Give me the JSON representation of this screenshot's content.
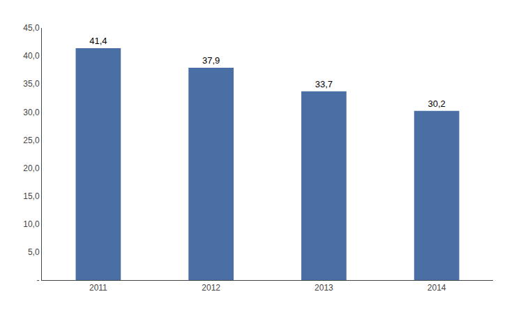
{
  "chart_data": {
    "type": "bar",
    "categories": [
      "2011",
      "2012",
      "2013",
      "2014"
    ],
    "values": [
      41.4,
      37.9,
      33.7,
      30.2
    ],
    "value_labels": [
      "41,4",
      "37,9",
      "33,7",
      "30,2"
    ],
    "data_labels": true,
    "color": "#4a6fa5",
    "ylim": [
      0,
      45
    ],
    "yticks": [
      {
        "value": 0,
        "label": "-"
      },
      {
        "value": 5,
        "label": "5,0"
      },
      {
        "value": 10,
        "label": "10,0"
      },
      {
        "value": 15,
        "label": "15,0"
      },
      {
        "value": 20,
        "label": "20,0"
      },
      {
        "value": 25,
        "label": "25,0"
      },
      {
        "value": 30,
        "label": "30,0"
      },
      {
        "value": 35,
        "label": "35,0"
      },
      {
        "value": 40,
        "label": "40,0"
      },
      {
        "value": 45,
        "label": "45,0"
      }
    ],
    "grid": false
  }
}
